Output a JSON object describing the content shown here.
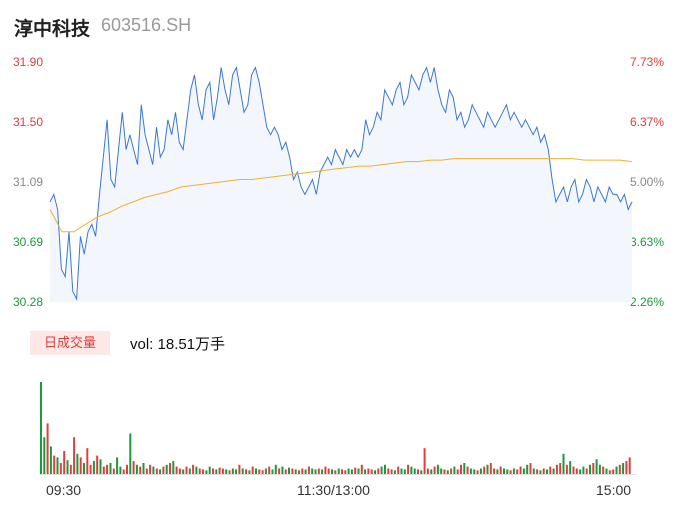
{
  "header": {
    "name": "淳中科技",
    "code": "603516.SH"
  },
  "price_axis": [
    "31.90",
    "31.50",
    "31.09",
    "30.69",
    "30.28"
  ],
  "pct_axis": [
    "7.73%",
    "6.37%",
    "5.00%",
    "3.63%",
    "2.26%"
  ],
  "volume": {
    "tag": "日成交量",
    "text": "vol: 18.51万手"
  },
  "time_axis": [
    "09:30",
    "11:30/13:00",
    "15:00"
  ],
  "colors": {
    "up": "#e23c3c",
    "down": "#1a9a3a",
    "price_line": "#3a78d8",
    "avg_line": "#f0b030",
    "area": "#f3f6fc"
  },
  "chart_data": [
    {
      "type": "line",
      "ylim": [
        30.28,
        31.9
      ],
      "series": [
        {
          "values": [
            30.95,
            31.0,
            30.9,
            30.5,
            30.45,
            30.75,
            30.35,
            30.3,
            30.72,
            30.6,
            30.75,
            30.8,
            30.72,
            31.0,
            31.25,
            31.5,
            31.1,
            31.05,
            31.3,
            31.55,
            31.3,
            31.4,
            31.3,
            31.2,
            31.6,
            31.4,
            31.3,
            31.2,
            31.45,
            31.25,
            31.3,
            31.5,
            31.4,
            31.55,
            31.35,
            31.3,
            31.5,
            31.7,
            31.8,
            31.6,
            31.5,
            31.7,
            31.75,
            31.5,
            31.65,
            31.85,
            31.7,
            31.6,
            31.8,
            31.85,
            31.7,
            31.55,
            31.6,
            31.8,
            31.85,
            31.75,
            31.6,
            31.45,
            31.4,
            31.45,
            31.4,
            31.3,
            31.35,
            31.25,
            31.1,
            31.15,
            31.05,
            31.0,
            31.05,
            31.1,
            31.0,
            31.15,
            31.2,
            31.25,
            31.2,
            31.3,
            31.25,
            31.2,
            31.3,
            31.25,
            31.3,
            31.25,
            31.3,
            31.5,
            31.4,
            31.45,
            31.55,
            31.5,
            31.7,
            31.65,
            31.6,
            31.7,
            31.75,
            31.6,
            31.65,
            31.8,
            31.75,
            31.7,
            31.8,
            31.85,
            31.75,
            31.85,
            31.7,
            31.6,
            31.55,
            31.7,
            31.65,
            31.5,
            31.55,
            31.45,
            31.5,
            31.6,
            31.55,
            31.5,
            31.45,
            31.55,
            31.5,
            31.45,
            31.5,
            31.55,
            31.6,
            31.5,
            31.55,
            31.5,
            31.45,
            31.5,
            31.45,
            31.4,
            31.45,
            31.35,
            31.4,
            31.3,
            31.1,
            30.95,
            31.0,
            31.05,
            30.95,
            31.05,
            31.1,
            30.95,
            31.0,
            31.1,
            31.05,
            30.95,
            31.05,
            31.0,
            30.95,
            31.05,
            31.0,
            31.0,
            30.95,
            31.0,
            30.9,
            30.95
          ]
        },
        {
          "values": [
            30.9,
            30.75,
            30.75,
            30.8,
            30.85,
            30.88,
            30.92,
            30.95,
            30.98,
            31.0,
            31.02,
            31.05,
            31.06,
            31.07,
            31.08,
            31.09,
            31.1,
            31.1,
            31.11,
            31.12,
            31.13,
            31.14,
            31.15,
            31.16,
            31.17,
            31.18,
            31.19,
            31.19,
            31.2,
            31.21,
            31.22,
            31.22,
            31.23,
            31.23,
            31.24,
            31.24,
            31.24,
            31.24,
            31.24,
            31.24,
            31.24,
            31.24,
            31.24,
            31.24,
            31.24,
            31.23,
            31.23,
            31.23,
            31.23,
            31.22
          ]
        }
      ]
    },
    {
      "type": "bar",
      "volume_rel": [
        100,
        40,
        55,
        30,
        20,
        18,
        12,
        25,
        15,
        10,
        40,
        22,
        18,
        12,
        28,
        10,
        14,
        20,
        16,
        8,
        10,
        12,
        6,
        18,
        8,
        5,
        10,
        44,
        14,
        10,
        8,
        12,
        6,
        10,
        8,
        6,
        5,
        8,
        10,
        12,
        14,
        8,
        6,
        5,
        8,
        6,
        10,
        8,
        6,
        5,
        4,
        8,
        6,
        5,
        7,
        6,
        5,
        4,
        6,
        5,
        10,
        6,
        5,
        4,
        8,
        6,
        5,
        4,
        6,
        8,
        5,
        10,
        6,
        8,
        5,
        7,
        6,
        5,
        4,
        6,
        5,
        8,
        6,
        5,
        6,
        5,
        8,
        6,
        5,
        4,
        6,
        5,
        4,
        6,
        5,
        7,
        6,
        10,
        5,
        6,
        5,
        4,
        6,
        8,
        10,
        6,
        5,
        4,
        8,
        6,
        5,
        10,
        8,
        6,
        5,
        4,
        28,
        6,
        5,
        8,
        10,
        6,
        5,
        4,
        6,
        8,
        5,
        10,
        12,
        8,
        6,
        5,
        4,
        6,
        8,
        10,
        12,
        6,
        5,
        8,
        6,
        5,
        4,
        6,
        5,
        8,
        6,
        10,
        12,
        6,
        5,
        4,
        6,
        5,
        8,
        6,
        10,
        12,
        22,
        10,
        14,
        8,
        6,
        5,
        8,
        6,
        10,
        12,
        16,
        10,
        8,
        6,
        4,
        5,
        8,
        10,
        12,
        14,
        18
      ],
      "up_flags": [
        0,
        0,
        1,
        0,
        1,
        0,
        1,
        1,
        0,
        1,
        1,
        0,
        1,
        0,
        1,
        1,
        0,
        1,
        0,
        1,
        1,
        0,
        1,
        0,
        0,
        1,
        1,
        0,
        1,
        0,
        1,
        0,
        1,
        1,
        0,
        1,
        0,
        1,
        0,
        1,
        0,
        1,
        1,
        0,
        1,
        0,
        1,
        0,
        1,
        1,
        0,
        0,
        1,
        0,
        1,
        1,
        0,
        1,
        0,
        0,
        1,
        0,
        1,
        0,
        1,
        0,
        1,
        1,
        0,
        1,
        0,
        0,
        1,
        0,
        1,
        0,
        1,
        0,
        1,
        1,
        0,
        1,
        0,
        0,
        1,
        0,
        1,
        1,
        0,
        1,
        0,
        1,
        1,
        0,
        0,
        1,
        0,
        1,
        0,
        1,
        1,
        0,
        1,
        0,
        0,
        1,
        1,
        0,
        1,
        0,
        0,
        1,
        0,
        0,
        1,
        0,
        1,
        1,
        0,
        1,
        0,
        0,
        1,
        0,
        1,
        0,
        1,
        1,
        0,
        1,
        0,
        0,
        1,
        0,
        1,
        0,
        1,
        1,
        0,
        1,
        0,
        0,
        1,
        0,
        1,
        1,
        0,
        0,
        1,
        0,
        1,
        0,
        1,
        0,
        1,
        0,
        1,
        1,
        0,
        1,
        0,
        1,
        1,
        0,
        0,
        1,
        0,
        1,
        0,
        0,
        1,
        0,
        1,
        1,
        0,
        1,
        0,
        1,
        1
      ]
    }
  ]
}
